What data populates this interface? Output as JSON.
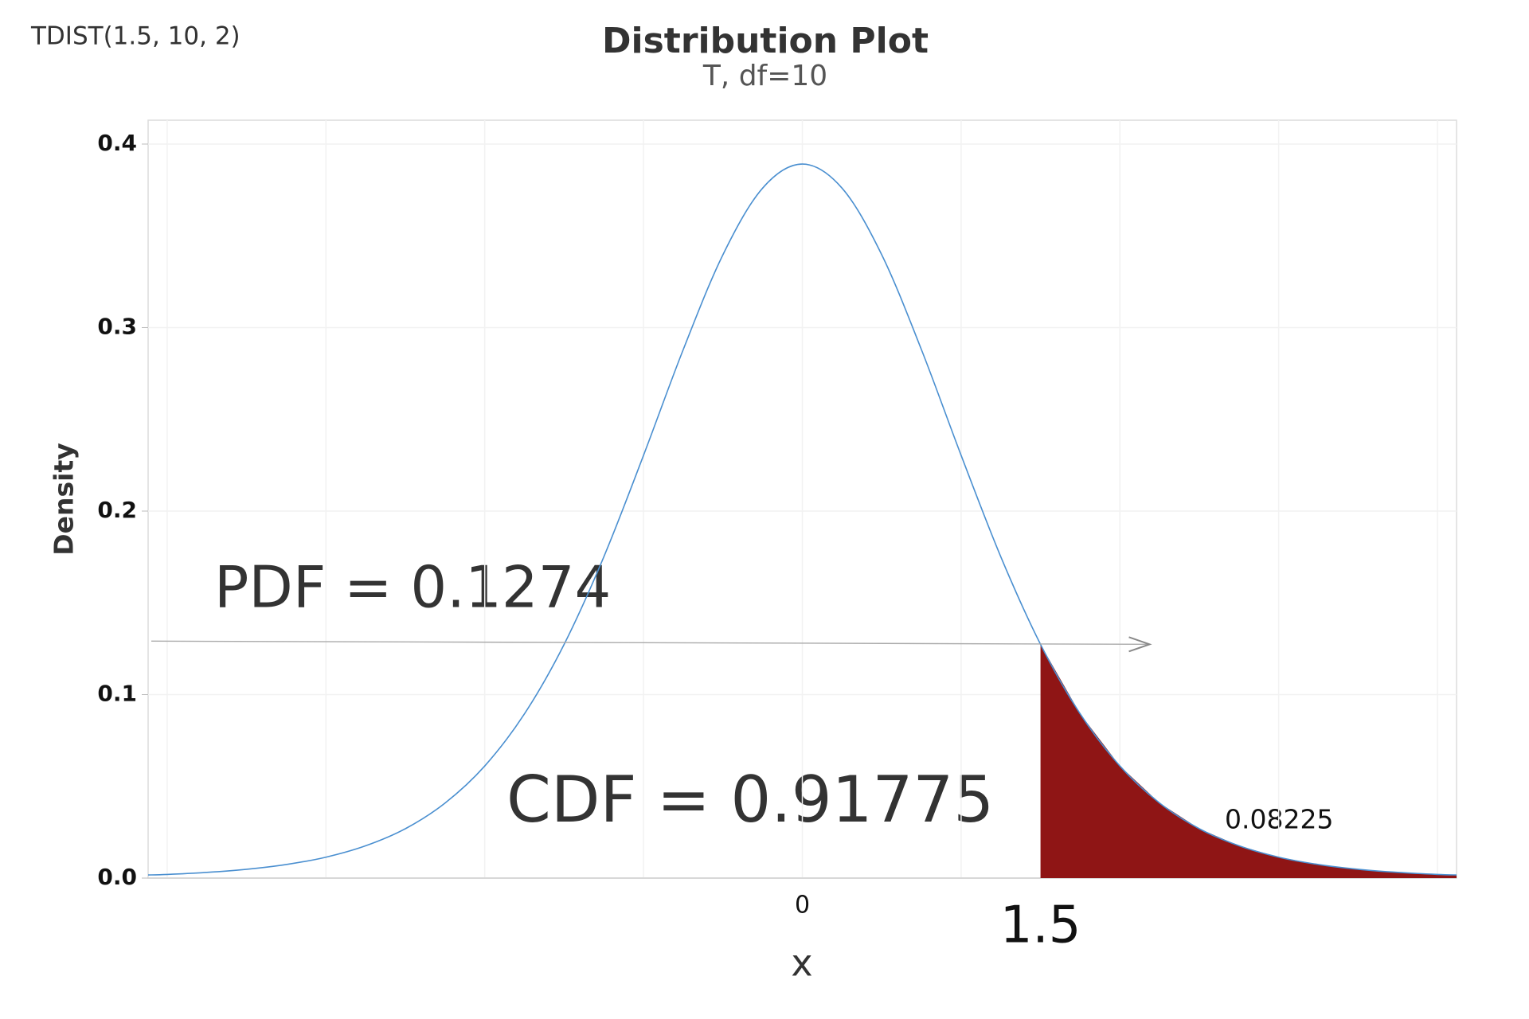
{
  "chart_data": {
    "type": "area-line",
    "annotation": "TDIST(1.5, 10, 2)",
    "title": "Distribution Plot",
    "subtitle": "T, df=10",
    "xlabel": "x",
    "ylabel": "Density",
    "x": [
      -4.12,
      -4,
      -3.75,
      -3.5,
      -3.25,
      -3,
      -2.75,
      -2.5,
      -2.25,
      -2,
      -1.75,
      -1.5,
      -1.25,
      -1,
      -0.75,
      -0.5,
      -0.25,
      0,
      0.25,
      0.5,
      0.75,
      1,
      1.25,
      1.5,
      1.75,
      2,
      2.25,
      2.5,
      2.75,
      3,
      3.25,
      3.5,
      3.75,
      4,
      4.12
    ],
    "values": [
      0.0017,
      0.002,
      0.0031,
      0.0048,
      0.0074,
      0.0114,
      0.0176,
      0.0269,
      0.0409,
      0.0611,
      0.0895,
      0.1274,
      0.1751,
      0.2304,
      0.288,
      0.3397,
      0.376,
      0.3891,
      0.376,
      0.3397,
      0.288,
      0.2304,
      0.1751,
      0.1274,
      0.0895,
      0.0611,
      0.0409,
      0.0269,
      0.0176,
      0.0114,
      0.0074,
      0.0048,
      0.0031,
      0.002,
      0.0017
    ],
    "color": "#4a8fd0",
    "shade": {
      "from": 1.5,
      "color": "#8f1515"
    },
    "pdf_label": "PDF = 0.1274",
    "cdf_label": "CDF = 0.91775",
    "tail_label": "0.08225",
    "xlim": [
      -4.12,
      4.12
    ],
    "ylim": [
      0,
      0.413
    ],
    "xticks": [
      0,
      1.5
    ],
    "xgrid": [
      -4,
      -3,
      -2,
      -1,
      0,
      1,
      2,
      3,
      4
    ],
    "yticks": [
      {
        "value": 0,
        "label": "0.0"
      },
      0.1,
      0.2,
      0.3,
      0.4
    ],
    "grid": true
  }
}
